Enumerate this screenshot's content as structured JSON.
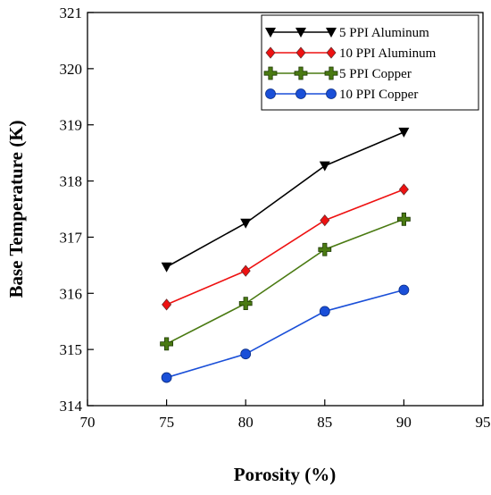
{
  "chart_data": {
    "type": "line",
    "title": "",
    "xlabel": "Porosity (%)",
    "ylabel": "Base Temperature (K)",
    "xlim": [
      70,
      95
    ],
    "ylim": [
      314,
      321
    ],
    "xticks": [
      70,
      75,
      80,
      85,
      90,
      95
    ],
    "yticks": [
      314,
      315,
      316,
      317,
      318,
      319,
      320,
      321
    ],
    "x": [
      75,
      80,
      85,
      90
    ],
    "grid": false,
    "legend_position": "top-right",
    "series": [
      {
        "name": "5 PPI Aluminum",
        "values": [
          316.47,
          317.25,
          318.27,
          318.87
        ],
        "color": "#000000",
        "marker": "triangle-down"
      },
      {
        "name": "10 PPI Aluminum",
        "values": [
          315.8,
          316.4,
          317.3,
          317.85
        ],
        "color": "#ee1111",
        "marker": "diamond"
      },
      {
        "name": "5 PPI Copper",
        "values": [
          315.1,
          315.82,
          316.78,
          317.32
        ],
        "color": "#4a7a12",
        "marker": "plus"
      },
      {
        "name": "10 PPI Copper",
        "values": [
          314.5,
          314.92,
          315.68,
          316.06
        ],
        "color": "#1a4fd8",
        "marker": "circle"
      }
    ]
  }
}
